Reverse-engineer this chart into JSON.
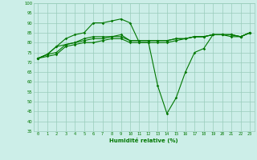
{
  "x": [
    0,
    1,
    2,
    3,
    4,
    5,
    6,
    7,
    8,
    9,
    10,
    11,
    12,
    13,
    14,
    15,
    16,
    17,
    18,
    19,
    20,
    21,
    22,
    23
  ],
  "series1": [
    72,
    74,
    78,
    82,
    84,
    85,
    90,
    90,
    91,
    92,
    90,
    80,
    80,
    58,
    44,
    52,
    65,
    75,
    77,
    84,
    84,
    83,
    83,
    85
  ],
  "series2": [
    72,
    74,
    78,
    79,
    80,
    82,
    83,
    83,
    83,
    84,
    81,
    81,
    81,
    81,
    81,
    82,
    82,
    83,
    83,
    84,
    84,
    84,
    83,
    85
  ],
  "series3": [
    72,
    74,
    75,
    79,
    80,
    81,
    82,
    82,
    83,
    83,
    81,
    81,
    81,
    81,
    81,
    82,
    82,
    83,
    83,
    84,
    84,
    84,
    83,
    85
  ],
  "series4": [
    72,
    73,
    74,
    78,
    79,
    80,
    80,
    81,
    82,
    82,
    80,
    80,
    80,
    80,
    80,
    81,
    82,
    83,
    83,
    84,
    84,
    84,
    83,
    85
  ],
  "bg_color": "#cceee8",
  "grid_color": "#99ccbb",
  "line_color": "#007700",
  "xlabel": "Humidité relative (%)",
  "xlabel_color": "#007700",
  "ylim": [
    35,
    100
  ],
  "xlim": [
    -0.5,
    23.5
  ],
  "yticks": [
    35,
    40,
    45,
    50,
    55,
    60,
    65,
    70,
    75,
    80,
    85,
    90,
    95,
    100
  ],
  "xticks": [
    0,
    1,
    2,
    3,
    4,
    5,
    6,
    7,
    8,
    9,
    10,
    11,
    12,
    13,
    14,
    15,
    16,
    17,
    18,
    19,
    20,
    21,
    22,
    23
  ]
}
